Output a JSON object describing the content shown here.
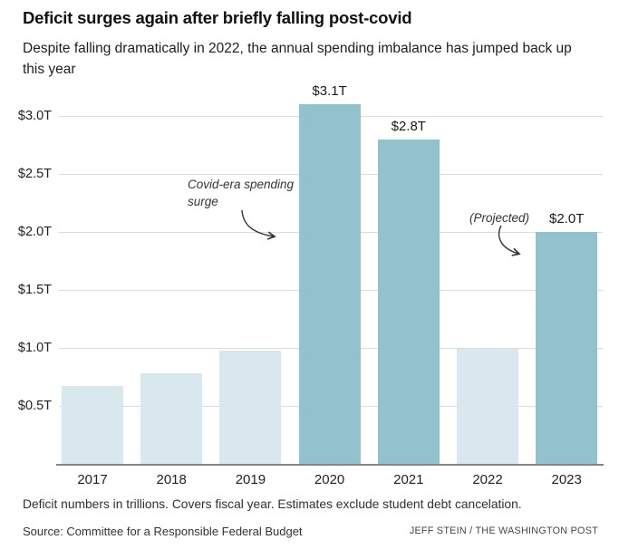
{
  "header": {
    "title": "Deficit surges again after briefly falling post-covid",
    "subtitle": "Despite falling dramatically in 2022, the annual spending imbalance has jumped back up this year"
  },
  "chart_data": {
    "type": "bar",
    "title": "Deficit surges again after briefly falling post-covid",
    "subtitle": "Despite falling dramatically in 2022, the annual spending imbalance has jumped back up this year",
    "categories": [
      "2017",
      "2018",
      "2019",
      "2020",
      "2021",
      "2022",
      "2023"
    ],
    "values": [
      0.67,
      0.78,
      0.98,
      3.1,
      2.8,
      0.99,
      2.0
    ],
    "value_labels": [
      "",
      "",
      "",
      "$3.1T",
      "$2.8T",
      "",
      "$2.0T"
    ],
    "emphasized": [
      false,
      false,
      false,
      true,
      true,
      false,
      true
    ],
    "unit": "trillions of dollars",
    "ylim": [
      0,
      3.25
    ],
    "yticks": [
      {
        "value": 0.5,
        "label": "$0.5T"
      },
      {
        "value": 1.0,
        "label": "$1.0T"
      },
      {
        "value": 1.5,
        "label": "$1.5T"
      },
      {
        "value": 2.0,
        "label": "$2.0T"
      },
      {
        "value": 2.5,
        "label": "$2.5T"
      },
      {
        "value": 3.0,
        "label": "$3.0T"
      }
    ],
    "grid": "horizontal",
    "legend": "none",
    "annotations": [
      {
        "text": "Covid-era spending surge",
        "target": "2020"
      },
      {
        "text": "(Projected)",
        "target": "2023"
      }
    ],
    "colors": {
      "bar_highlight": "#93c2cd",
      "bar_muted": "#d9e8ee",
      "gridline": "#dcdcdc",
      "axis": "#858585",
      "annotation": "#333333"
    }
  },
  "footer": {
    "note": "Deficit numbers in trillions. Covers fiscal year. Estimates exclude student debt cancelation.",
    "source": "Source: Committee for a Responsible Federal Budget",
    "credit": "JEFF STEIN / THE WASHINGTON POST"
  }
}
